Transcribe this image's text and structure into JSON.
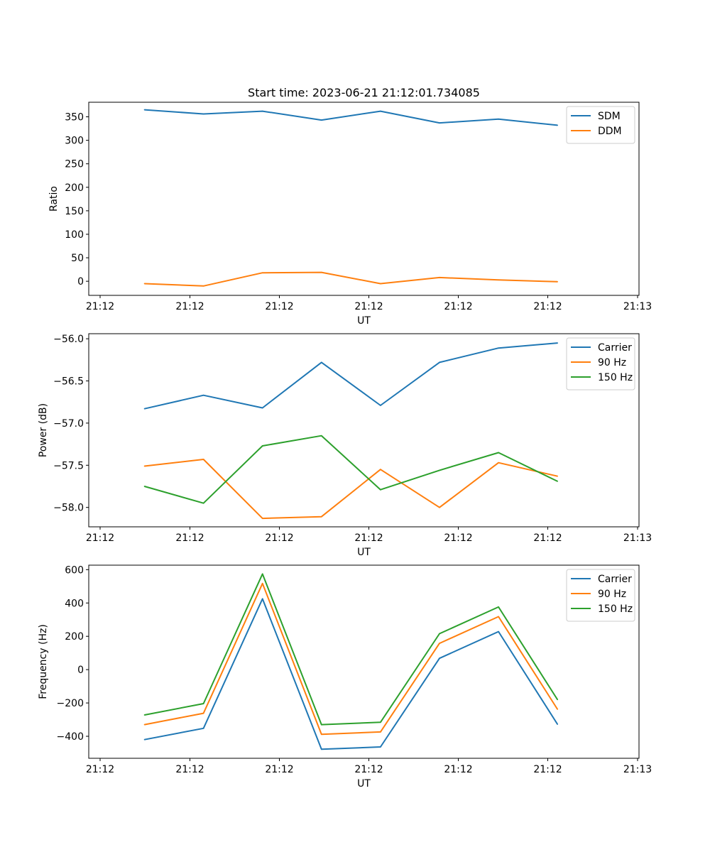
{
  "figure": {
    "title": "Start time: 2023-06-21 21:12:01.734085"
  },
  "chart_data": [
    {
      "type": "line",
      "title": "Start time: 2023-06-21 21:12:01.734085",
      "xlabel": "UT",
      "ylabel": "Ratio",
      "x_tick_labels": [
        "21:12",
        "21:12",
        "21:12",
        "21:12",
        "21:12",
        "21:12",
        "21:12"
      ],
      "x_tick_labels_end": "21:13",
      "y_ticks": [
        0,
        50,
        100,
        150,
        200,
        250,
        300,
        350
      ],
      "y_tick_labels": [
        "0",
        "50",
        "100",
        "150",
        "200",
        "250",
        "300",
        "350"
      ],
      "ylim": [
        -30,
        381
      ],
      "grid": false,
      "legend_position": "top-right",
      "series": [
        {
          "name": "SDM",
          "color": "#1f77b4",
          "values": [
            365,
            356,
            362,
            343,
            362,
            337,
            345,
            332
          ]
        },
        {
          "name": "DDM",
          "color": "#ff7f0e",
          "values": [
            -5,
            -10,
            18,
            19,
            -5,
            8,
            3,
            -1
          ]
        }
      ]
    },
    {
      "type": "line",
      "xlabel": "UT",
      "ylabel": "Power (dB)",
      "x_tick_labels": [
        "21:12",
        "21:12",
        "21:12",
        "21:12",
        "21:12",
        "21:12",
        "21:12"
      ],
      "x_tick_labels_end": "21:13",
      "y_ticks": [
        -58.0,
        -57.5,
        -57.0,
        -56.5,
        -56.0
      ],
      "y_tick_labels": [
        "−58.0",
        "−57.5",
        "−57.0",
        "−56.5",
        "−56.0"
      ],
      "ylim": [
        -58.23,
        -55.94
      ],
      "grid": false,
      "legend_position": "top-right",
      "series": [
        {
          "name": "Carrier",
          "color": "#1f77b4",
          "values": [
            -56.83,
            -56.67,
            -56.82,
            -56.28,
            -56.79,
            -56.28,
            -56.11,
            -56.05
          ]
        },
        {
          "name": "90 Hz",
          "color": "#ff7f0e",
          "values": [
            -57.51,
            -57.43,
            -58.13,
            -58.11,
            -57.55,
            -58.0,
            -57.47,
            -57.63
          ]
        },
        {
          "name": "150 Hz",
          "color": "#2ca02c",
          "values": [
            -57.75,
            -57.95,
            -57.27,
            -57.15,
            -57.79,
            -57.56,
            -57.35,
            -57.69
          ]
        }
      ]
    },
    {
      "type": "line",
      "xlabel": "UT",
      "ylabel": "Frequency (Hz)",
      "x_tick_labels": [
        "21:12",
        "21:12",
        "21:12",
        "21:12",
        "21:12",
        "21:12",
        "21:12"
      ],
      "x_tick_labels_end": "21:13",
      "y_ticks": [
        -400,
        -200,
        0,
        200,
        400,
        600
      ],
      "y_tick_labels": [
        "−400",
        "−200",
        "0",
        "200",
        "400",
        "600"
      ],
      "ylim": [
        -532,
        627
      ],
      "grid": false,
      "legend_position": "top-right",
      "series": [
        {
          "name": "Carrier",
          "color": "#1f77b4",
          "values": [
            -420,
            -352,
            425,
            -478,
            -464,
            68,
            228,
            -328
          ]
        },
        {
          "name": "90 Hz",
          "color": "#ff7f0e",
          "values": [
            -330,
            -262,
            517,
            -388,
            -374,
            158,
            318,
            -238
          ]
        },
        {
          "name": "150 Hz",
          "color": "#2ca02c",
          "values": [
            -272,
            -204,
            574,
            -330,
            -316,
            216,
            376,
            -180
          ]
        }
      ]
    }
  ]
}
